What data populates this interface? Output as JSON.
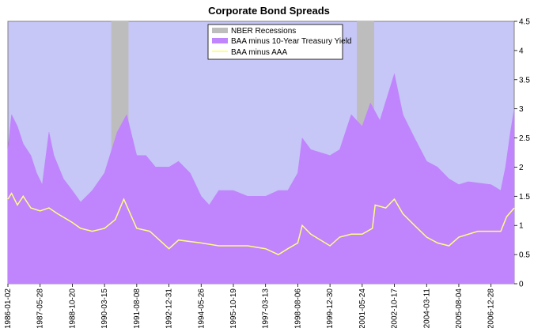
{
  "chart_data": {
    "type": "area",
    "title": "Corporate Bond Spreads",
    "xlabel": "",
    "ylabel": "",
    "ylim": [
      0,
      4.5
    ],
    "y_ticks": [
      "0",
      "0.5",
      "1",
      "1.5",
      "2",
      "2.5",
      "3",
      "3.5",
      "4",
      "4.5"
    ],
    "y_axis_side": "right",
    "x_range": [
      "1986-01-02",
      "2007-12-31"
    ],
    "x_ticks": [
      "1986-01-02",
      "1987-05-28",
      "1988-10-20",
      "1990-03-15",
      "1991-08-08",
      "1992-12-31",
      "1994-05-26",
      "1995-10-19",
      "1997-03-13",
      "1998-08-06",
      "1999-12-30",
      "2001-05-24",
      "2002-10-17",
      "2004-03-11",
      "2005-08-04",
      "2006-12-28"
    ],
    "grid": false,
    "legend_position": "top-center",
    "colors": {
      "plot_background": "#c6c6f7",
      "recession": "#bdbdbd",
      "baa_treasury": "#c084fc",
      "baa_aaa": "#ffff80"
    },
    "recessions": [
      {
        "start": "1990-07-01",
        "end": "1991-03-31"
      },
      {
        "start": "2001-03-01",
        "end": "2001-11-30"
      }
    ],
    "series": [
      {
        "name": "NBER Recessions",
        "kind": "recession-bars"
      },
      {
        "name": "BAA minus 10-Year Treasury Yield",
        "kind": "area",
        "points": [
          [
            "1986-01-02",
            2.3
          ],
          [
            "1986-03-01",
            2.9
          ],
          [
            "1986-06-01",
            2.7
          ],
          [
            "1986-09-01",
            2.4
          ],
          [
            "1987-01-01",
            2.2
          ],
          [
            "1987-04-01",
            1.9
          ],
          [
            "1987-07-01",
            1.7
          ],
          [
            "1987-10-15",
            2.6
          ],
          [
            "1988-01-01",
            2.2
          ],
          [
            "1988-06-01",
            1.8
          ],
          [
            "1988-10-20",
            1.6
          ],
          [
            "1989-03-01",
            1.4
          ],
          [
            "1989-09-01",
            1.6
          ],
          [
            "1990-03-15",
            1.9
          ],
          [
            "1990-10-01",
            2.6
          ],
          [
            "1991-03-01",
            2.9
          ],
          [
            "1991-08-08",
            2.2
          ],
          [
            "1992-01-01",
            2.2
          ],
          [
            "1992-06-01",
            2.0
          ],
          [
            "1992-12-31",
            2.0
          ],
          [
            "1993-06-01",
            2.1
          ],
          [
            "1993-12-01",
            1.9
          ],
          [
            "1994-05-26",
            1.5
          ],
          [
            "1994-10-01",
            1.35
          ],
          [
            "1995-03-01",
            1.6
          ],
          [
            "1995-10-19",
            1.6
          ],
          [
            "1996-06-01",
            1.5
          ],
          [
            "1997-03-13",
            1.5
          ],
          [
            "1997-10-01",
            1.6
          ],
          [
            "1998-03-01",
            1.6
          ],
          [
            "1998-08-06",
            1.9
          ],
          [
            "1998-10-15",
            2.5
          ],
          [
            "1999-03-01",
            2.3
          ],
          [
            "1999-12-30",
            2.2
          ],
          [
            "2000-06-01",
            2.3
          ],
          [
            "2000-12-01",
            2.9
          ],
          [
            "2001-05-24",
            2.7
          ],
          [
            "2001-10-01",
            3.1
          ],
          [
            "2002-03-01",
            2.8
          ],
          [
            "2002-10-17",
            3.6
          ],
          [
            "2003-03-01",
            2.9
          ],
          [
            "2003-09-01",
            2.5
          ],
          [
            "2004-03-11",
            2.1
          ],
          [
            "2004-09-01",
            2.0
          ],
          [
            "2005-03-01",
            1.8
          ],
          [
            "2005-08-04",
            1.7
          ],
          [
            "2006-01-01",
            1.75
          ],
          [
            "2006-12-28",
            1.7
          ],
          [
            "2007-06-01",
            1.6
          ],
          [
            "2007-08-15",
            2.0
          ],
          [
            "2007-11-01",
            2.6
          ],
          [
            "2007-12-31",
            3.0
          ]
        ]
      },
      {
        "name": "BAA minus AAA",
        "kind": "line",
        "points": [
          [
            "1986-01-02",
            1.45
          ],
          [
            "1986-03-01",
            1.55
          ],
          [
            "1986-06-01",
            1.35
          ],
          [
            "1986-09-01",
            1.5
          ],
          [
            "1987-01-01",
            1.3
          ],
          [
            "1987-05-28",
            1.25
          ],
          [
            "1987-10-15",
            1.3
          ],
          [
            "1988-03-01",
            1.2
          ],
          [
            "1988-10-20",
            1.05
          ],
          [
            "1989-03-01",
            0.95
          ],
          [
            "1989-09-01",
            0.9
          ],
          [
            "1990-03-15",
            0.95
          ],
          [
            "1990-09-01",
            1.1
          ],
          [
            "1991-01-15",
            1.45
          ],
          [
            "1991-08-08",
            0.95
          ],
          [
            "1992-03-01",
            0.9
          ],
          [
            "1992-12-31",
            0.6
          ],
          [
            "1993-06-01",
            0.75
          ],
          [
            "1994-05-26",
            0.7
          ],
          [
            "1995-03-01",
            0.65
          ],
          [
            "1995-10-19",
            0.65
          ],
          [
            "1996-06-01",
            0.65
          ],
          [
            "1997-03-13",
            0.6
          ],
          [
            "1997-10-01",
            0.5
          ],
          [
            "1998-03-01",
            0.6
          ],
          [
            "1998-08-06",
            0.7
          ],
          [
            "1998-10-15",
            1.0
          ],
          [
            "1999-03-01",
            0.85
          ],
          [
            "1999-12-30",
            0.65
          ],
          [
            "2000-06-01",
            0.8
          ],
          [
            "2000-12-01",
            0.85
          ],
          [
            "2001-05-24",
            0.85
          ],
          [
            "2001-11-01",
            0.95
          ],
          [
            "2001-12-15",
            1.35
          ],
          [
            "2002-06-01",
            1.3
          ],
          [
            "2002-10-17",
            1.45
          ],
          [
            "2003-03-01",
            1.2
          ],
          [
            "2003-09-01",
            1.0
          ],
          [
            "2004-03-11",
            0.8
          ],
          [
            "2004-09-01",
            0.7
          ],
          [
            "2005-03-01",
            0.65
          ],
          [
            "2005-08-04",
            0.8
          ],
          [
            "2006-06-01",
            0.9
          ],
          [
            "2006-12-28",
            0.9
          ],
          [
            "2007-06-01",
            0.9
          ],
          [
            "2007-09-01",
            1.15
          ],
          [
            "2007-12-31",
            1.3
          ]
        ]
      }
    ]
  }
}
